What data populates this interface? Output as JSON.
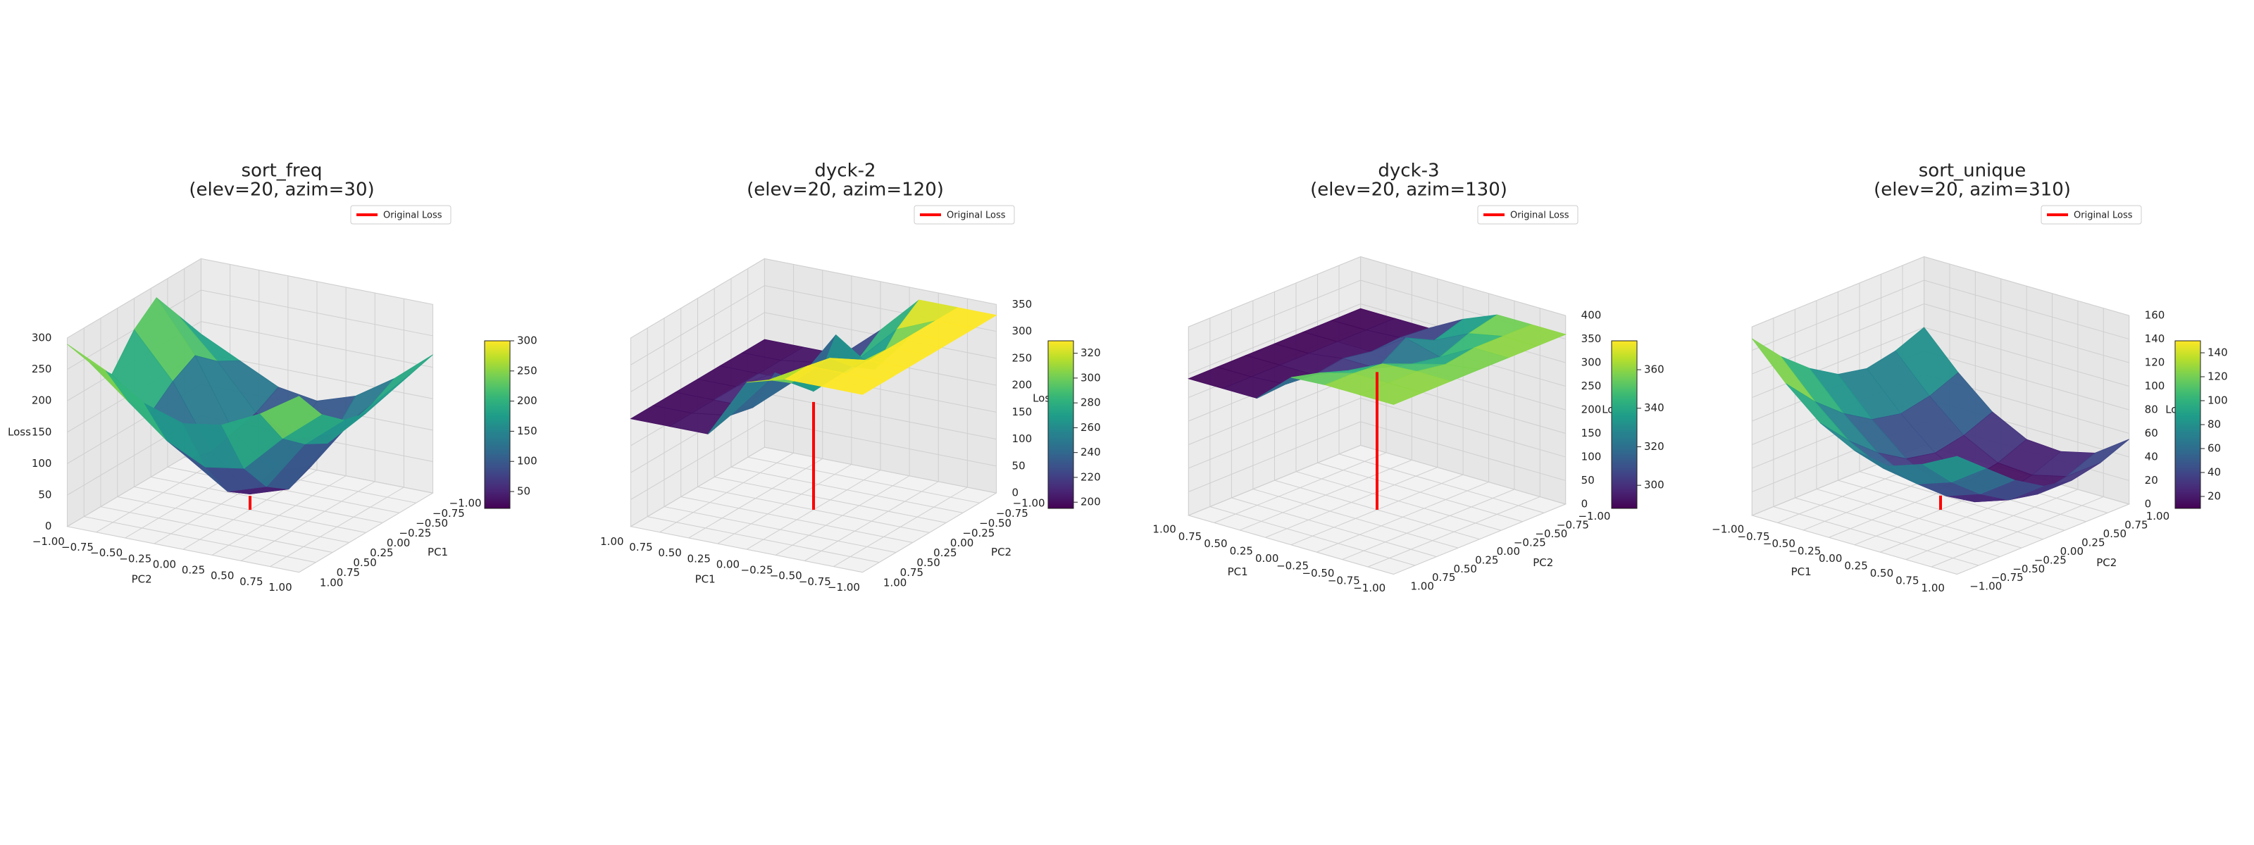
{
  "chart_data": [
    {
      "type": "surface3d",
      "title": "sort_freq",
      "subtitle": "(elev=20, azim=30)",
      "elev": 20,
      "azim": 30,
      "xlabel": "PC1",
      "ylabel": "PC2",
      "zlabel": "Loss",
      "colormap": "viridis",
      "legend": "upper right",
      "original_loss": {
        "label": "Original Loss",
        "color": "#ff0000",
        "value": 22
      },
      "x": [
        -1,
        -0.6667,
        -0.3333,
        0,
        0.3333,
        0.6667,
        1
      ],
      "y": [
        -1,
        -0.6667,
        -0.3333,
        0,
        0.3333,
        0.6667,
        1
      ],
      "z": [
        [
          180,
          230,
          280,
          250,
          200,
          240,
          290
        ],
        [
          150,
          170,
          200,
          180,
          150,
          190,
          260
        ],
        [
          120,
          100,
          90,
          80,
          90,
          140,
          220
        ],
        [
          110,
          70,
          40,
          25,
          50,
          110,
          200
        ],
        [
          130,
          90,
          60,
          45,
          70,
          120,
          210
        ],
        [
          170,
          150,
          140,
          130,
          150,
          180,
          240
        ],
        [
          220,
          210,
          200,
          190,
          200,
          230,
          280
        ]
      ],
      "xlim": [
        -1,
        1
      ],
      "ylim": [
        -1,
        1
      ],
      "zlim": [
        0,
        300
      ],
      "clim": [
        22,
        300
      ],
      "xticks": [
        {
          "value": -1,
          "label": "−1.00"
        },
        {
          "value": -0.75,
          "label": "−0.75"
        },
        {
          "value": -0.5,
          "label": "−0.50"
        },
        {
          "value": -0.25,
          "label": "−0.25"
        },
        {
          "value": 0,
          "label": "0.00"
        },
        {
          "value": 0.25,
          "label": "0.25"
        },
        {
          "value": 0.5,
          "label": "0.50"
        },
        {
          "value": 0.75,
          "label": "0.75"
        },
        {
          "value": 1,
          "label": "1.00"
        }
      ],
      "yticks": [
        {
          "value": -1,
          "label": "−1.00"
        },
        {
          "value": -0.75,
          "label": "−0.75"
        },
        {
          "value": -0.5,
          "label": "−0.50"
        },
        {
          "value": -0.25,
          "label": "−0.25"
        },
        {
          "value": 0,
          "label": "0.00"
        },
        {
          "value": 0.25,
          "label": "0.25"
        },
        {
          "value": 0.5,
          "label": "0.50"
        },
        {
          "value": 0.75,
          "label": "0.75"
        },
        {
          "value": 1,
          "label": "1.00"
        }
      ],
      "zticks": [
        0,
        50,
        100,
        150,
        200,
        250,
        300
      ],
      "cticks": [
        50,
        100,
        150,
        200,
        250,
        300
      ]
    },
    {
      "type": "surface3d",
      "title": "dyck-2",
      "subtitle": "(elev=20, azim=120)",
      "elev": 20,
      "azim": 120,
      "xlabel": "PC1",
      "ylabel": "PC2",
      "zlabel": "Loss",
      "colormap": "viridis",
      "legend": "upper right",
      "original_loss": {
        "label": "Original Loss",
        "color": "#ff0000",
        "value": 200
      },
      "x": [
        -1,
        -0.6667,
        -0.3333,
        0,
        0.3333,
        0.6667,
        1
      ],
      "y": [
        -1,
        -0.6667,
        -0.3333,
        0,
        0.3333,
        0.6667,
        1
      ],
      "z": [
        [
          330,
          330,
          330,
          260,
          200,
          200,
          200
        ],
        [
          330,
          330,
          300,
          230,
          210,
          200,
          200
        ],
        [
          330,
          330,
          250,
          300,
          200,
          200,
          200
        ],
        [
          330,
          330,
          280,
          220,
          240,
          200,
          200
        ],
        [
          330,
          330,
          320,
          260,
          200,
          200,
          200
        ],
        [
          330,
          330,
          330,
          290,
          210,
          200,
          200
        ],
        [
          330,
          330,
          330,
          310,
          200,
          200,
          200
        ]
      ],
      "xlim": [
        -1,
        1
      ],
      "ylim": [
        -1,
        1
      ],
      "zlim": [
        0,
        350
      ],
      "clim": [
        195,
        330
      ],
      "xticks": [
        {
          "value": -1,
          "label": "−1.00"
        },
        {
          "value": -0.75,
          "label": "−0.75"
        },
        {
          "value": -0.5,
          "label": "−0.50"
        },
        {
          "value": -0.25,
          "label": "−0.25"
        },
        {
          "value": 0,
          "label": "0.00"
        },
        {
          "value": 0.25,
          "label": "0.25"
        },
        {
          "value": 0.5,
          "label": "0.50"
        },
        {
          "value": 0.75,
          "label": "0.75"
        },
        {
          "value": 1,
          "label": "1.00"
        }
      ],
      "yticks": [
        {
          "value": -1,
          "label": "−1.00"
        },
        {
          "value": -0.75,
          "label": "−0.75"
        },
        {
          "value": -0.5,
          "label": "−0.50"
        },
        {
          "value": -0.25,
          "label": "−0.25"
        },
        {
          "value": 0,
          "label": "0.00"
        },
        {
          "value": 0.25,
          "label": "0.25"
        },
        {
          "value": 0.5,
          "label": "0.50"
        },
        {
          "value": 0.75,
          "label": "0.75"
        },
        {
          "value": 1,
          "label": "1.00"
        }
      ],
      "zticks": [
        0,
        50,
        100,
        150,
        200,
        250,
        300,
        350
      ],
      "cticks": [
        200,
        220,
        240,
        260,
        280,
        300,
        320
      ]
    },
    {
      "type": "surface3d",
      "title": "dyck-3",
      "subtitle": "(elev=20, azim=130)",
      "elev": 20,
      "azim": 130,
      "xlabel": "PC1",
      "ylabel": "PC2",
      "zlabel": "Loss",
      "colormap": "viridis",
      "legend": "upper right",
      "original_loss": {
        "label": "Original Loss",
        "color": "#ff0000",
        "value": 292
      },
      "x": [
        -1,
        -0.6667,
        -0.3333,
        0,
        0.3333,
        0.6667,
        1
      ],
      "y": [
        -1,
        -0.6667,
        -0.3333,
        0,
        0.3333,
        0.6667,
        1
      ],
      "z": [
        [
          360,
          360,
          360,
          330,
          290,
          290,
          290
        ],
        [
          360,
          360,
          345,
          310,
          295,
          290,
          290
        ],
        [
          360,
          360,
          320,
          340,
          290,
          290,
          290
        ],
        [
          360,
          350,
          330,
          300,
          300,
          290,
          290
        ],
        [
          360,
          360,
          355,
          320,
          290,
          290,
          290
        ],
        [
          360,
          360,
          360,
          340,
          295,
          290,
          290
        ],
        [
          360,
          360,
          360,
          355,
          290,
          290,
          290
        ]
      ],
      "xlim": [
        -1,
        1
      ],
      "ylim": [
        -1,
        1
      ],
      "zlim": [
        0,
        400
      ],
      "clim": [
        288,
        375
      ],
      "xticks": [
        {
          "value": -1,
          "label": "−1.00"
        },
        {
          "value": -0.75,
          "label": "−0.75"
        },
        {
          "value": -0.5,
          "label": "−0.50"
        },
        {
          "value": -0.25,
          "label": "−0.25"
        },
        {
          "value": 0,
          "label": "0.00"
        },
        {
          "value": 0.25,
          "label": "0.25"
        },
        {
          "value": 0.5,
          "label": "0.50"
        },
        {
          "value": 0.75,
          "label": "0.75"
        },
        {
          "value": 1,
          "label": "1.00"
        }
      ],
      "yticks": [
        {
          "value": -1,
          "label": "−1.00"
        },
        {
          "value": -0.75,
          "label": "−0.75"
        },
        {
          "value": -0.5,
          "label": "−0.50"
        },
        {
          "value": -0.25,
          "label": "−0.25"
        },
        {
          "value": 0,
          "label": "0.00"
        },
        {
          "value": 0.25,
          "label": "0.25"
        },
        {
          "value": 0.5,
          "label": "0.50"
        },
        {
          "value": 0.75,
          "label": "0.75"
        },
        {
          "value": 1,
          "label": "1.00"
        }
      ],
      "zticks": [
        0,
        50,
        100,
        150,
        200,
        250,
        300,
        350,
        400
      ],
      "cticks": [
        300,
        320,
        340,
        360
      ]
    },
    {
      "type": "surface3d",
      "title": "sort_unique",
      "subtitle": "(elev=20, azim=310)",
      "elev": 20,
      "azim": 310,
      "xlabel": "PC1",
      "ylabel": "PC2",
      "zlabel": "Loss",
      "colormap": "viridis",
      "legend": "upper right",
      "original_loss": {
        "label": "Original Loss",
        "color": "#ff0000",
        "value": 12
      },
      "x": [
        -1,
        -0.6667,
        -0.3333,
        0,
        0.3333,
        0.6667,
        1
      ],
      "y": [
        -1,
        -0.6667,
        -0.3333,
        0,
        0.3333,
        0.6667,
        1
      ],
      "z": [
        [
          150,
          120,
          95,
          80,
          75,
          85,
          100
        ],
        [
          125,
          95,
          70,
          55,
          50,
          60,
          80
        ],
        [
          105,
          75,
          50,
          35,
          30,
          40,
          60
        ],
        [
          90,
          60,
          35,
          20,
          15,
          25,
          45
        ],
        [
          85,
          55,
          30,
          15,
          12,
          20,
          40
        ],
        [
          90,
          60,
          35,
          20,
          18,
          25,
          45
        ],
        [
          100,
          70,
          45,
          30,
          28,
          35,
          55
        ]
      ],
      "xlim": [
        -1,
        1
      ],
      "ylim": [
        -1,
        1
      ],
      "zlim": [
        0,
        160
      ],
      "clim": [
        10,
        150
      ],
      "xticks": [
        {
          "value": -1,
          "label": "−1.00"
        },
        {
          "value": -0.75,
          "label": "−0.75"
        },
        {
          "value": -0.5,
          "label": "−0.50"
        },
        {
          "value": -0.25,
          "label": "−0.25"
        },
        {
          "value": 0,
          "label": "0.00"
        },
        {
          "value": 0.25,
          "label": "0.25"
        },
        {
          "value": 0.5,
          "label": "0.50"
        },
        {
          "value": 0.75,
          "label": "0.75"
        },
        {
          "value": 1,
          "label": "1.00"
        }
      ],
      "yticks": [
        {
          "value": -1,
          "label": "−1.00"
        },
        {
          "value": -0.75,
          "label": "−0.75"
        },
        {
          "value": -0.5,
          "label": "−0.50"
        },
        {
          "value": -0.25,
          "label": "−0.25"
        },
        {
          "value": 0,
          "label": "0.00"
        },
        {
          "value": 0.25,
          "label": "0.25"
        },
        {
          "value": 0.5,
          "label": "0.50"
        },
        {
          "value": 0.75,
          "label": "0.75"
        },
        {
          "value": 1,
          "label": "1.00"
        }
      ],
      "zticks": [
        0,
        20,
        40,
        60,
        80,
        100,
        120,
        140,
        160
      ],
      "cticks": [
        20,
        40,
        60,
        80,
        100,
        120,
        140
      ]
    }
  ]
}
